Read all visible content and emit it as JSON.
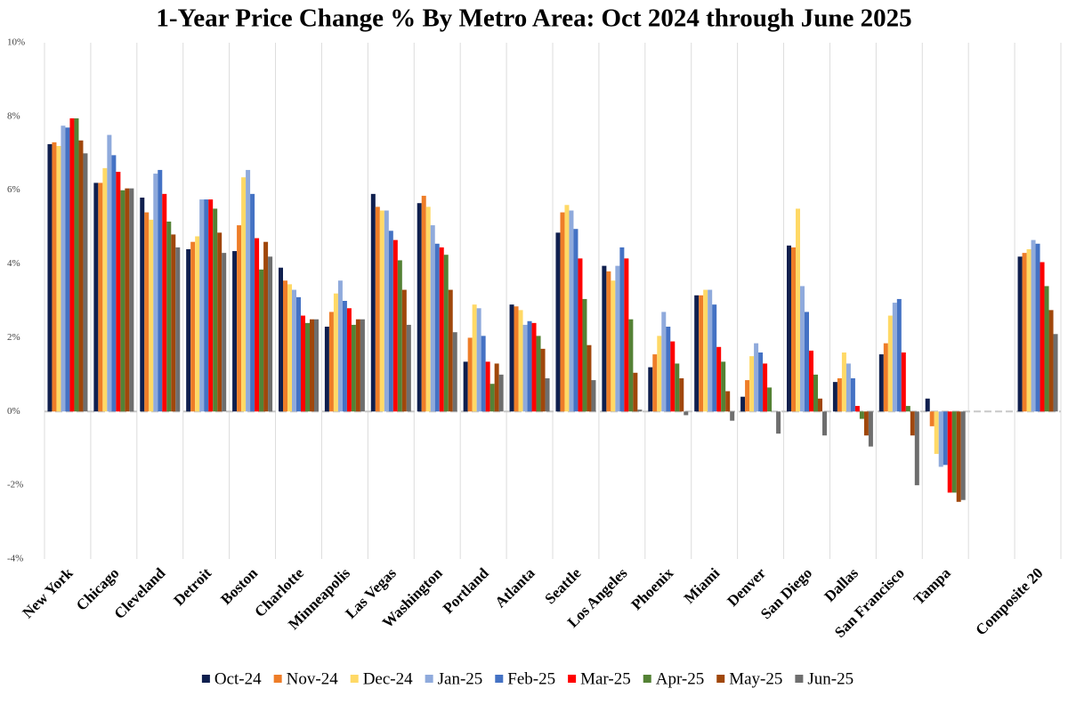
{
  "chart_data": {
    "type": "bar",
    "title": "1-Year Price Change % By Metro Area: Oct 2024 through June 2025",
    "categories": [
      "New York",
      "Chicago",
      "Cleveland",
      "Detroit",
      "Boston",
      "Charlotte",
      "Minneapolis",
      "Las Vegas",
      "Washington",
      "Portland",
      "Atlanta",
      "Seattle",
      "Los Angeles",
      "Phoenix",
      "Miami",
      "Denver",
      "San Diego",
      "Dallas",
      "San Francisco",
      "Tampa",
      null,
      "Composite 20"
    ],
    "series": [
      {
        "name": "Oct-24",
        "color": "#0f1f4e",
        "values": [
          7.25,
          6.2,
          5.8,
          4.4,
          4.35,
          3.9,
          2.3,
          5.9,
          5.65,
          1.35,
          2.9,
          4.85,
          3.95,
          1.2,
          3.15,
          0.4,
          4.5,
          0.8,
          1.55,
          0.35,
          null,
          4.2
        ]
      },
      {
        "name": "Nov-24",
        "color": "#ee7d28",
        "values": [
          7.3,
          6.2,
          5.4,
          4.6,
          5.05,
          3.55,
          2.7,
          5.55,
          5.85,
          2.0,
          2.85,
          5.4,
          3.8,
          1.55,
          3.15,
          0.85,
          4.45,
          0.9,
          1.85,
          -0.4,
          null,
          4.3
        ]
      },
      {
        "name": "Dec-24",
        "color": "#ffd966",
        "values": [
          7.2,
          6.6,
          5.2,
          4.75,
          6.35,
          3.45,
          3.2,
          5.45,
          5.55,
          2.9,
          2.75,
          5.6,
          3.55,
          2.05,
          3.3,
          1.5,
          5.5,
          1.6,
          2.6,
          -1.15,
          null,
          4.4
        ]
      },
      {
        "name": "Jan-25",
        "color": "#8faadc",
        "values": [
          7.75,
          7.5,
          6.45,
          5.75,
          6.55,
          3.3,
          3.55,
          5.45,
          5.05,
          2.8,
          2.35,
          5.45,
          3.95,
          2.7,
          3.3,
          1.85,
          3.4,
          1.3,
          2.95,
          -1.5,
          null,
          4.65
        ]
      },
      {
        "name": "Feb-25",
        "color": "#4472c4",
        "values": [
          7.7,
          6.95,
          6.55,
          5.75,
          5.9,
          3.1,
          3.0,
          4.9,
          4.55,
          2.05,
          2.45,
          4.95,
          4.45,
          2.3,
          2.9,
          1.6,
          2.7,
          0.9,
          3.05,
          -1.45,
          null,
          4.55
        ]
      },
      {
        "name": "Mar-25",
        "color": "#ff0000",
        "values": [
          7.95,
          6.5,
          5.9,
          5.75,
          4.7,
          2.6,
          2.8,
          4.65,
          4.45,
          1.35,
          2.4,
          4.15,
          4.15,
          1.9,
          1.75,
          1.3,
          1.65,
          0.15,
          1.6,
          -2.2,
          null,
          4.05
        ]
      },
      {
        "name": "Apr-25",
        "color": "#548235",
        "values": [
          7.95,
          6.0,
          5.15,
          5.5,
          3.85,
          2.4,
          2.35,
          4.1,
          4.25,
          0.75,
          2.05,
          3.05,
          2.5,
          1.3,
          1.35,
          0.65,
          1.0,
          -0.2,
          0.15,
          -2.2,
          null,
          3.4
        ]
      },
      {
        "name": "May-25",
        "color": "#a0470b",
        "values": [
          7.35,
          6.05,
          4.8,
          4.85,
          4.6,
          2.5,
          2.5,
          3.3,
          3.3,
          1.3,
          1.7,
          1.8,
          1.05,
          0.9,
          0.55,
          0.0,
          0.35,
          -0.65,
          -0.65,
          -2.45,
          null,
          2.75
        ]
      },
      {
        "name": "Jun-25",
        "color": "#6e6e6e",
        "values": [
          7.0,
          6.05,
          4.45,
          4.3,
          4.2,
          2.5,
          2.5,
          2.35,
          2.15,
          1.0,
          0.9,
          0.85,
          0.05,
          -0.1,
          -0.25,
          -0.6,
          -0.65,
          -0.95,
          -2.0,
          -2.4,
          null,
          2.1
        ]
      }
    ],
    "ylim": [
      -4,
      10
    ],
    "yticks": [
      {
        "value": -4,
        "label": "-4%"
      },
      {
        "value": -2,
        "label": "-2%"
      },
      {
        "value": 0,
        "label": "0%"
      },
      {
        "value": 2,
        "label": "2%"
      },
      {
        "value": 4,
        "label": "4%"
      },
      {
        "value": 6,
        "label": "6%"
      },
      {
        "value": 8,
        "label": "8%"
      },
      {
        "value": 10,
        "label": "10%"
      }
    ],
    "grid": true,
    "legend": "bottom"
  }
}
